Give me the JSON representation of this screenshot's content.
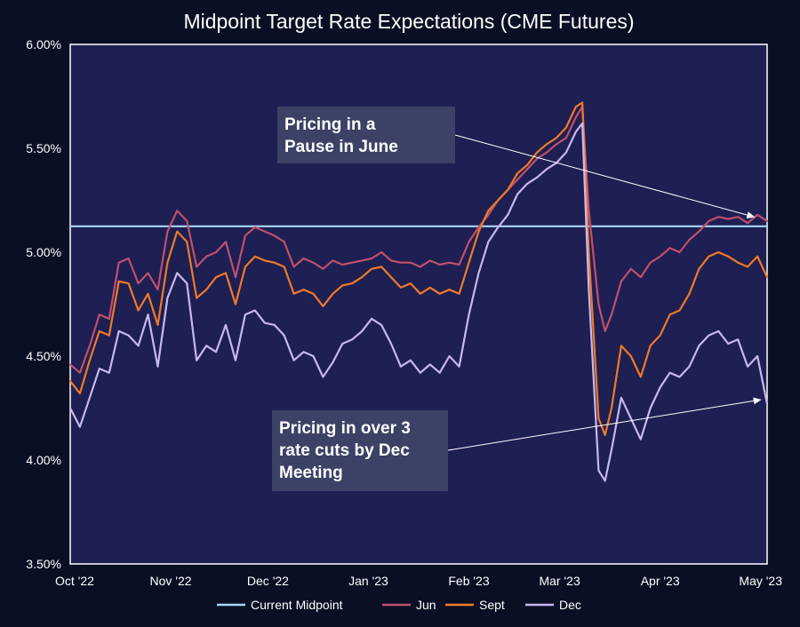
{
  "chart_data": {
    "type": "line",
    "title": "Midpoint Target Rate Expectations (CME Futures)",
    "xlabel": "",
    "ylabel": "",
    "ylim": [
      3.5,
      6.0
    ],
    "xlim": [
      "2022-10-01",
      "2023-05-04"
    ],
    "grid": false,
    "legend_position": "bottom",
    "y_ticks": [
      3.5,
      4.0,
      4.5,
      5.0,
      5.5,
      6.0
    ],
    "y_tick_labels": [
      "3.50%",
      "4.00%",
      "4.50%",
      "5.00%",
      "5.50%",
      "6.00%"
    ],
    "x_ticks": [
      "2022-10-01",
      "2022-11-01",
      "2022-12-01",
      "2023-01-01",
      "2023-02-01",
      "2023-03-01",
      "2023-04-01",
      "2023-05-01"
    ],
    "x_tick_labels": [
      "Oct '22",
      "Nov '22",
      "Dec '22",
      "Jan '23",
      "Feb '23",
      "Mar '23",
      "Apr '23",
      "May '23"
    ],
    "x": [
      "2022-10-01",
      "2022-10-04",
      "2022-10-07",
      "2022-10-10",
      "2022-10-13",
      "2022-10-16",
      "2022-10-19",
      "2022-10-22",
      "2022-10-25",
      "2022-10-28",
      "2022-10-31",
      "2022-11-03",
      "2022-11-06",
      "2022-11-09",
      "2022-11-12",
      "2022-11-15",
      "2022-11-18",
      "2022-11-21",
      "2022-11-24",
      "2022-11-27",
      "2022-11-30",
      "2022-12-03",
      "2022-12-06",
      "2022-12-09",
      "2022-12-12",
      "2022-12-15",
      "2022-12-18",
      "2022-12-21",
      "2022-12-24",
      "2022-12-27",
      "2022-12-30",
      "2023-01-02",
      "2023-01-05",
      "2023-01-08",
      "2023-01-11",
      "2023-01-14",
      "2023-01-17",
      "2023-01-20",
      "2023-01-23",
      "2023-01-26",
      "2023-01-29",
      "2023-02-01",
      "2023-02-04",
      "2023-02-07",
      "2023-02-10",
      "2023-02-13",
      "2023-02-16",
      "2023-02-19",
      "2023-02-22",
      "2023-02-25",
      "2023-02-28",
      "2023-03-03",
      "2023-03-06",
      "2023-03-08",
      "2023-03-10",
      "2023-03-13",
      "2023-03-15",
      "2023-03-17",
      "2023-03-20",
      "2023-03-23",
      "2023-03-26",
      "2023-03-29",
      "2023-04-01",
      "2023-04-04",
      "2023-04-07",
      "2023-04-10",
      "2023-04-13",
      "2023-04-16",
      "2023-04-19",
      "2023-04-22",
      "2023-04-25",
      "2023-04-28",
      "2023-05-01",
      "2023-05-04"
    ],
    "series": [
      {
        "name": "Current Midpoint",
        "color": "#a9d6f5",
        "values": [
          5.125,
          5.125,
          5.125,
          5.125,
          5.125,
          5.125,
          5.125,
          5.125,
          5.125,
          5.125,
          5.125,
          5.125,
          5.125,
          5.125,
          5.125,
          5.125,
          5.125,
          5.125,
          5.125,
          5.125,
          5.125,
          5.125,
          5.125,
          5.125,
          5.125,
          5.125,
          5.125,
          5.125,
          5.125,
          5.125,
          5.125,
          5.125,
          5.125,
          5.125,
          5.125,
          5.125,
          5.125,
          5.125,
          5.125,
          5.125,
          5.125,
          5.125,
          5.125,
          5.125,
          5.125,
          5.125,
          5.125,
          5.125,
          5.125,
          5.125,
          5.125,
          5.125,
          5.125,
          5.125,
          5.125,
          5.125,
          5.125,
          5.125,
          5.125,
          5.125,
          5.125,
          5.125,
          5.125,
          5.125,
          5.125,
          5.125,
          5.125,
          5.125,
          5.125,
          5.125,
          5.125,
          5.125,
          5.125,
          5.125
        ]
      },
      {
        "name": "Jun",
        "color": "#c0506e",
        "values": [
          4.46,
          4.42,
          4.55,
          4.7,
          4.68,
          4.95,
          4.97,
          4.85,
          4.9,
          4.82,
          5.1,
          5.2,
          5.15,
          4.93,
          4.98,
          5.0,
          5.05,
          4.88,
          5.08,
          5.12,
          5.1,
          5.08,
          5.05,
          4.93,
          4.97,
          4.95,
          4.92,
          4.96,
          4.94,
          4.95,
          4.96,
          4.97,
          5.0,
          4.96,
          4.95,
          4.95,
          4.93,
          4.96,
          4.94,
          4.95,
          4.94,
          5.05,
          5.12,
          5.18,
          5.25,
          5.3,
          5.35,
          5.4,
          5.45,
          5.48,
          5.52,
          5.55,
          5.65,
          5.7,
          5.2,
          4.75,
          4.62,
          4.7,
          4.86,
          4.92,
          4.88,
          4.95,
          4.98,
          5.02,
          5.0,
          5.06,
          5.1,
          5.15,
          5.17,
          5.16,
          5.17,
          5.14,
          5.18,
          5.15
        ]
      },
      {
        "name": "Sept",
        "color": "#f07a2a",
        "values": [
          4.38,
          4.32,
          4.48,
          4.62,
          4.6,
          4.86,
          4.85,
          4.72,
          4.8,
          4.65,
          4.95,
          5.1,
          5.05,
          4.78,
          4.82,
          4.88,
          4.9,
          4.75,
          4.93,
          4.98,
          4.96,
          4.95,
          4.93,
          4.8,
          4.82,
          4.8,
          4.74,
          4.8,
          4.84,
          4.85,
          4.88,
          4.92,
          4.93,
          4.88,
          4.83,
          4.85,
          4.8,
          4.83,
          4.8,
          4.82,
          4.8,
          4.95,
          5.1,
          5.2,
          5.25,
          5.3,
          5.38,
          5.42,
          5.48,
          5.52,
          5.55,
          5.6,
          5.7,
          5.72,
          5.0,
          4.2,
          4.12,
          4.25,
          4.55,
          4.5,
          4.4,
          4.55,
          4.6,
          4.7,
          4.72,
          4.8,
          4.92,
          4.98,
          5.0,
          4.98,
          4.95,
          4.93,
          4.98,
          4.88
        ]
      },
      {
        "name": "Dec",
        "color": "#c8b8f0",
        "values": [
          4.25,
          4.16,
          4.3,
          4.44,
          4.42,
          4.62,
          4.6,
          4.55,
          4.7,
          4.45,
          4.78,
          4.9,
          4.85,
          4.48,
          4.55,
          4.52,
          4.65,
          4.48,
          4.7,
          4.72,
          4.66,
          4.65,
          4.6,
          4.48,
          4.52,
          4.5,
          4.4,
          4.47,
          4.56,
          4.58,
          4.62,
          4.68,
          4.65,
          4.56,
          4.45,
          4.48,
          4.42,
          4.46,
          4.42,
          4.5,
          4.45,
          4.7,
          4.9,
          5.05,
          5.12,
          5.18,
          5.28,
          5.33,
          5.36,
          5.4,
          5.43,
          5.48,
          5.58,
          5.62,
          4.82,
          3.95,
          3.9,
          4.05,
          4.3,
          4.2,
          4.1,
          4.25,
          4.35,
          4.42,
          4.4,
          4.45,
          4.55,
          4.6,
          4.62,
          4.56,
          4.58,
          4.45,
          4.5,
          4.27
        ]
      }
    ],
    "annotations": [
      {
        "lines": [
          "Pricing in a",
          "Pause in June"
        ],
        "target": {
          "x": "2023-04-30",
          "y": 5.17
        }
      },
      {
        "lines": [
          "Pricing in over 3",
          "rate cuts by Dec",
          "Meeting"
        ],
        "target": {
          "x": "2023-05-02",
          "y": 4.29
        }
      }
    ]
  }
}
